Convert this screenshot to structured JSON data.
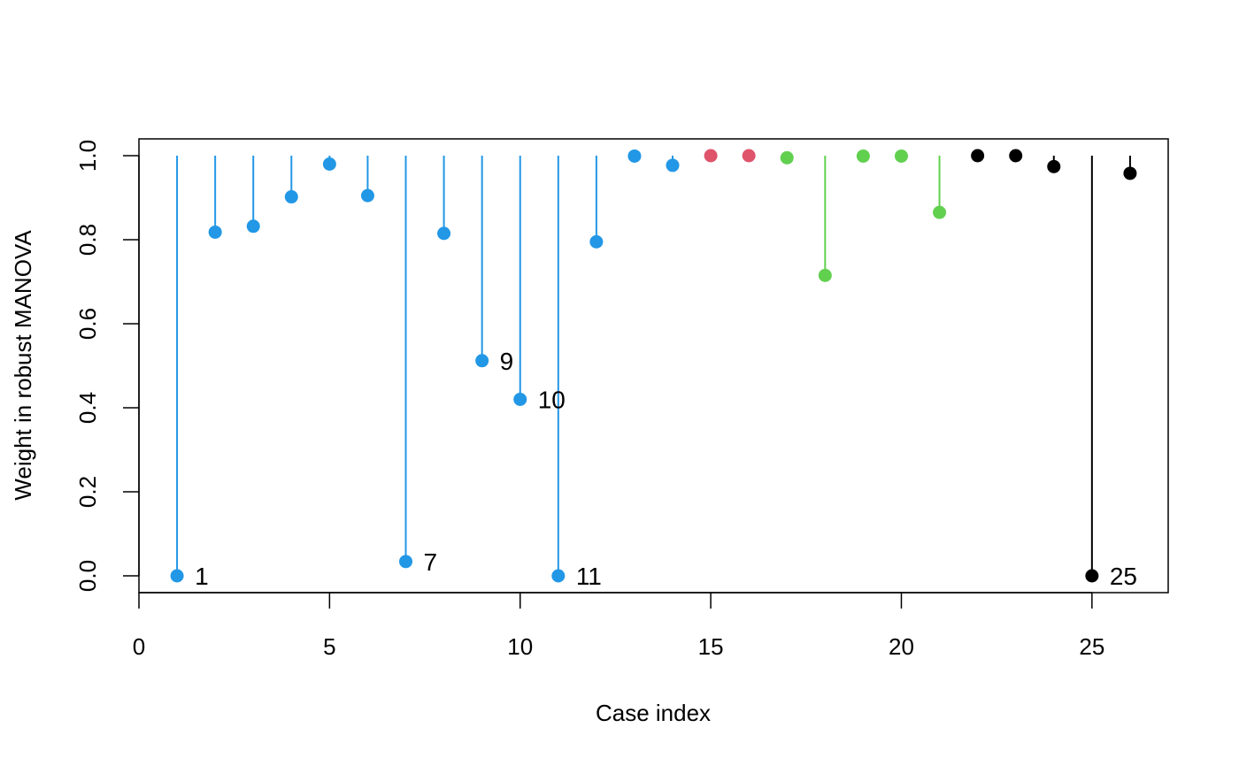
{
  "chart_data": {
    "type": "scatter",
    "style": "index plot with drop lines from 1.0",
    "title": "",
    "xlabel": "Case index",
    "ylabel": "Weight in robust MANOVA",
    "xlim": [
      0,
      27
    ],
    "ylim": [
      -0.04,
      1.04
    ],
    "x_ticks": [
      "0",
      "5",
      "10",
      "15",
      "20",
      "25"
    ],
    "y_ticks": [
      "0.0",
      "0.2",
      "0.4",
      "0.6",
      "0.8",
      "1.0"
    ],
    "grid": false,
    "legend": "none",
    "group_colors": [
      "#2297E6",
      "#DF536B",
      "#61D04F",
      "#000000"
    ],
    "points": [
      {
        "x": 1,
        "y": 0.0,
        "group": 0,
        "label": "1"
      },
      {
        "x": 2,
        "y": 0.818,
        "group": 0
      },
      {
        "x": 3,
        "y": 0.832,
        "group": 0
      },
      {
        "x": 4,
        "y": 0.902,
        "group": 0
      },
      {
        "x": 5,
        "y": 0.98,
        "group": 0
      },
      {
        "x": 6,
        "y": 0.905,
        "group": 0
      },
      {
        "x": 7,
        "y": 0.034,
        "group": 0,
        "label": "7"
      },
      {
        "x": 8,
        "y": 0.815,
        "group": 0
      },
      {
        "x": 9,
        "y": 0.512,
        "group": 0,
        "label": "9"
      },
      {
        "x": 10,
        "y": 0.42,
        "group": 0,
        "label": "10"
      },
      {
        "x": 11,
        "y": 0.0,
        "group": 0,
        "label": "11"
      },
      {
        "x": 12,
        "y": 0.795,
        "group": 0
      },
      {
        "x": 13,
        "y": 0.999,
        "group": 0
      },
      {
        "x": 14,
        "y": 0.977,
        "group": 0
      },
      {
        "x": 15,
        "y": 1.0,
        "group": 1
      },
      {
        "x": 16,
        "y": 1.0,
        "group": 1
      },
      {
        "x": 17,
        "y": 0.995,
        "group": 2
      },
      {
        "x": 18,
        "y": 0.715,
        "group": 2
      },
      {
        "x": 19,
        "y": 0.999,
        "group": 2
      },
      {
        "x": 20,
        "y": 0.999,
        "group": 2
      },
      {
        "x": 21,
        "y": 0.865,
        "group": 2
      },
      {
        "x": 22,
        "y": 1.0,
        "group": 3
      },
      {
        "x": 23,
        "y": 1.0,
        "group": 3
      },
      {
        "x": 24,
        "y": 0.974,
        "group": 3
      },
      {
        "x": 25,
        "y": 0.0,
        "group": 3,
        "label": "25"
      },
      {
        "x": 26,
        "y": 0.958,
        "group": 3
      }
    ]
  }
}
